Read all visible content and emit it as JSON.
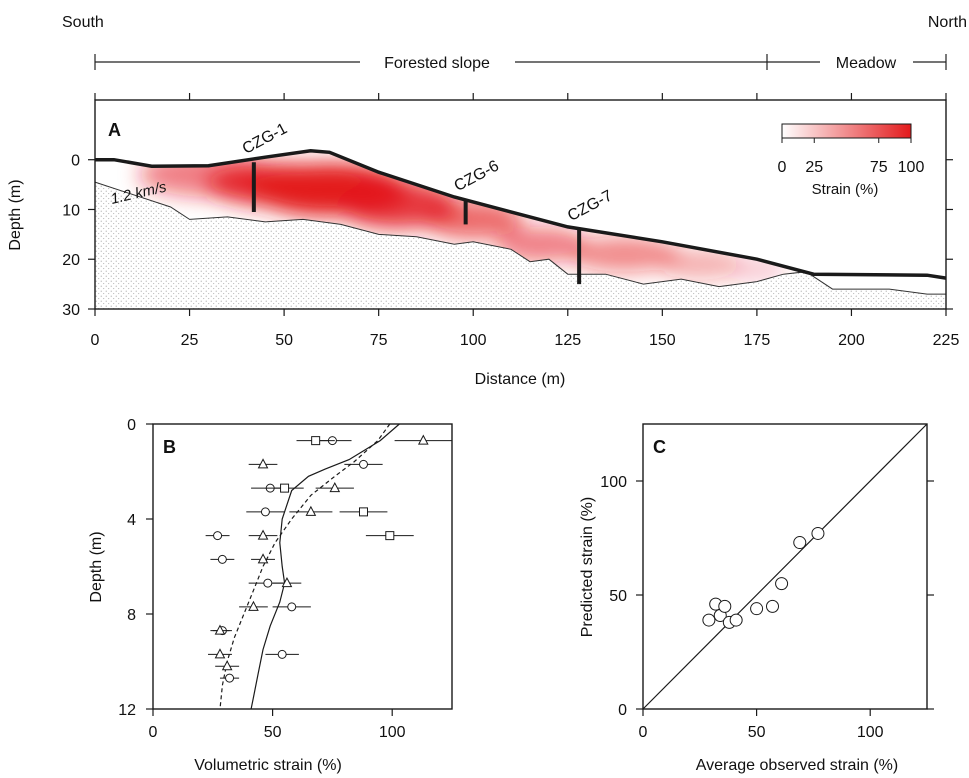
{
  "header": {
    "south": "South",
    "north": "North",
    "zone_forest": "Forested slope",
    "zone_meadow": "Meadow"
  },
  "chart_data": [
    {
      "panel": "A",
      "type": "heatmap",
      "xlabel": "Distance (m)",
      "ylabel": "Depth (m)",
      "xlim": [
        0,
        225
      ],
      "ylim": [
        30,
        -12
      ],
      "x_ticks": [
        "0",
        "25",
        "50",
        "75",
        "100",
        "125",
        "150",
        "175",
        "200",
        "225"
      ],
      "y_ticks": [
        "0",
        "10",
        "20",
        "30"
      ],
      "velocity_label": "1.2 km/s",
      "colorbar": {
        "title": "Strain (%)",
        "ticks": [
          "0",
          "25",
          "75",
          "100"
        ],
        "range": [
          0,
          100
        ],
        "color_low": "#ffffff",
        "color_high": "#e31a1c"
      },
      "surface": [
        {
          "x": 0,
          "y": 0
        },
        {
          "x": 5,
          "y": 0
        },
        {
          "x": 15,
          "y": 1.3
        },
        {
          "x": 30,
          "y": 1.2
        },
        {
          "x": 45,
          "y": -0.5
        },
        {
          "x": 57,
          "y": -1.8
        },
        {
          "x": 62,
          "y": -1.5
        },
        {
          "x": 75,
          "y": 2.5
        },
        {
          "x": 95,
          "y": 7.5
        },
        {
          "x": 125,
          "y": 13.5
        },
        {
          "x": 150,
          "y": 16.5
        },
        {
          "x": 175,
          "y": 20
        },
        {
          "x": 190,
          "y": 23
        },
        {
          "x": 220,
          "y": 23.2
        },
        {
          "x": 225,
          "y": 23.8
        }
      ],
      "boundary": [
        {
          "x": 0,
          "y": 4.5
        },
        {
          "x": 20,
          "y": 9.5
        },
        {
          "x": 25,
          "y": 12
        },
        {
          "x": 35,
          "y": 11.5
        },
        {
          "x": 45,
          "y": 12.5
        },
        {
          "x": 55,
          "y": 12
        },
        {
          "x": 65,
          "y": 13
        },
        {
          "x": 75,
          "y": 15
        },
        {
          "x": 85,
          "y": 15.5
        },
        {
          "x": 95,
          "y": 17
        },
        {
          "x": 100,
          "y": 16.5
        },
        {
          "x": 110,
          "y": 18
        },
        {
          "x": 115,
          "y": 20.5
        },
        {
          "x": 120,
          "y": 20
        },
        {
          "x": 125,
          "y": 23
        },
        {
          "x": 135,
          "y": 23
        },
        {
          "x": 145,
          "y": 25
        },
        {
          "x": 155,
          "y": 24
        },
        {
          "x": 165,
          "y": 25.5
        },
        {
          "x": 175,
          "y": 24.5
        },
        {
          "x": 182,
          "y": 23
        },
        {
          "x": 188,
          "y": 22.5
        },
        {
          "x": 195,
          "y": 26
        },
        {
          "x": 210,
          "y": 26
        },
        {
          "x": 220,
          "y": 27
        },
        {
          "x": 225,
          "y": 27
        }
      ],
      "boreholes": [
        {
          "name": "CZG-1",
          "x": 42,
          "top": 0.5,
          "bottom": 10.5
        },
        {
          "name": "CZG-6",
          "x": 98,
          "top": 8.0,
          "bottom": 13.0
        },
        {
          "name": "CZG-7",
          "x": 128,
          "top": 14.0,
          "bottom": 25.0
        }
      ]
    },
    {
      "panel": "B",
      "type": "scatter",
      "xlabel": "Volumetric strain (%)",
      "ylabel": "Depth (m)",
      "xlim": [
        0,
        125
      ],
      "ylim": [
        12,
        0
      ],
      "x_ticks": [
        "0",
        "50",
        "100"
      ],
      "y_ticks": [
        "0",
        "4",
        "8",
        "12"
      ],
      "series": [
        {
          "marker": "circle",
          "points": [
            {
              "x": 75,
              "y": 0.7,
              "err": 8
            },
            {
              "x": 88,
              "y": 1.7,
              "err": 8
            },
            {
              "x": 49,
              "y": 2.7,
              "err": 8
            },
            {
              "x": 47,
              "y": 3.7,
              "err": 8
            },
            {
              "x": 27,
              "y": 4.7,
              "err": 5
            },
            {
              "x": 29,
              "y": 5.7,
              "err": 5
            },
            {
              "x": 48,
              "y": 6.7,
              "err": 8
            },
            {
              "x": 58,
              "y": 7.7,
              "err": 8
            },
            {
              "x": 29,
              "y": 8.7,
              "err": 4
            },
            {
              "x": 54,
              "y": 9.7,
              "err": 7
            },
            {
              "x": 32,
              "y": 10.7,
              "err": 4
            }
          ]
        },
        {
          "marker": "triangle",
          "points": [
            {
              "x": 113,
              "y": 0.7,
              "err": 12
            },
            {
              "x": 46,
              "y": 1.7,
              "err": 6
            },
            {
              "x": 76,
              "y": 2.7,
              "err": 8
            },
            {
              "x": 66,
              "y": 3.7,
              "err": 9
            },
            {
              "x": 46,
              "y": 4.7,
              "err": 6
            },
            {
              "x": 46,
              "y": 5.7,
              "err": 5
            },
            {
              "x": 56,
              "y": 6.7,
              "err": 6
            },
            {
              "x": 42,
              "y": 7.7,
              "err": 6
            },
            {
              "x": 28,
              "y": 8.7,
              "err": 4
            },
            {
              "x": 28,
              "y": 9.7,
              "err": 5
            },
            {
              "x": 31,
              "y": 10.2,
              "err": 5
            }
          ]
        },
        {
          "marker": "square",
          "points": [
            {
              "x": 68,
              "y": 0.7,
              "err": 8
            },
            {
              "x": 55,
              "y": 2.7,
              "err": 8
            },
            {
              "x": 88,
              "y": 3.7,
              "err": 10
            },
            {
              "x": 99,
              "y": 4.7,
              "err": 10
            }
          ]
        }
      ],
      "solid_curve": [
        {
          "x": 103,
          "y": 0
        },
        {
          "x": 95,
          "y": 0.7
        },
        {
          "x": 82,
          "y": 1.5
        },
        {
          "x": 72,
          "y": 1.9
        },
        {
          "x": 65,
          "y": 2.2
        },
        {
          "x": 58,
          "y": 2.8
        },
        {
          "x": 54,
          "y": 4.0
        },
        {
          "x": 53,
          "y": 5.0
        },
        {
          "x": 54,
          "y": 6.0
        },
        {
          "x": 55,
          "y": 6.7
        },
        {
          "x": 53,
          "y": 7.5
        },
        {
          "x": 49,
          "y": 8.5
        },
        {
          "x": 46,
          "y": 9.5
        },
        {
          "x": 44,
          "y": 10.5
        },
        {
          "x": 42,
          "y": 11.5
        },
        {
          "x": 41,
          "y": 12
        }
      ],
      "dashed_curve": [
        {
          "x": 99,
          "y": 0
        },
        {
          "x": 94,
          "y": 0.7
        },
        {
          "x": 84,
          "y": 1.6
        },
        {
          "x": 76,
          "y": 2.2
        },
        {
          "x": 66,
          "y": 3.0
        },
        {
          "x": 58,
          "y": 4.0
        },
        {
          "x": 51,
          "y": 5.0
        },
        {
          "x": 46,
          "y": 6.0
        },
        {
          "x": 42,
          "y": 7.0
        },
        {
          "x": 38,
          "y": 8.0
        },
        {
          "x": 34,
          "y": 9.0
        },
        {
          "x": 31,
          "y": 10.0
        },
        {
          "x": 29,
          "y": 11.0
        },
        {
          "x": 28,
          "y": 12
        }
      ]
    },
    {
      "panel": "C",
      "type": "scatter",
      "xlabel": "Average observed strain (%)",
      "ylabel": "Predicted strain (%)",
      "xlim": [
        0,
        125
      ],
      "ylim": [
        0,
        125
      ],
      "x_ticks": [
        "0",
        "50",
        "100"
      ],
      "y_ticks": [
        "0",
        "50",
        "100"
      ],
      "one_to_one_line": true,
      "points": [
        {
          "x": 29,
          "y": 39
        },
        {
          "x": 32,
          "y": 46
        },
        {
          "x": 34,
          "y": 41
        },
        {
          "x": 36,
          "y": 45
        },
        {
          "x": 38,
          "y": 38
        },
        {
          "x": 41,
          "y": 39
        },
        {
          "x": 50,
          "y": 44
        },
        {
          "x": 57,
          "y": 45
        },
        {
          "x": 61,
          "y": 55
        },
        {
          "x": 69,
          "y": 73
        },
        {
          "x": 77,
          "y": 77
        }
      ]
    }
  ]
}
